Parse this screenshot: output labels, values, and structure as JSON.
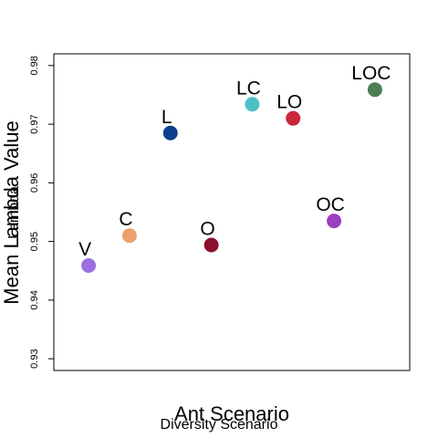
{
  "chart_data": {
    "type": "scatter",
    "title": "",
    "xlabel": "Ant Scenario",
    "xlabel_overlay": "Diversity Scenario",
    "ylabel": "Mean Lambda Value",
    "ylabel_overlay": "Lambda",
    "ylim": [
      0.928,
      0.982
    ],
    "xlim": [
      0.15,
      8.85
    ],
    "yticks": [
      "0.93",
      "0.94",
      "0.95",
      "0.96",
      "0.97",
      "0.98"
    ],
    "ytick_values": [
      0.93,
      0.94,
      0.95,
      0.96,
      0.97,
      0.98
    ],
    "grid": false,
    "legend": "none",
    "points": [
      {
        "label": "V",
        "x": 1,
        "y": 0.9459,
        "color": "#9b6fe0"
      },
      {
        "label": "C",
        "x": 2,
        "y": 0.951,
        "color": "#eba16e"
      },
      {
        "label": "L",
        "x": 3,
        "y": 0.9685,
        "color": "#0c3f8c"
      },
      {
        "label": "O",
        "x": 4,
        "y": 0.9494,
        "color": "#8c0f2e"
      },
      {
        "label": "LC",
        "x": 5,
        "y": 0.9734,
        "color": "#4dbfc7"
      },
      {
        "label": "LO",
        "x": 6,
        "y": 0.971,
        "color": "#cc2639"
      },
      {
        "label": "OC",
        "x": 7,
        "y": 0.9535,
        "color": "#9b3fbe"
      },
      {
        "label": "LOC",
        "x": 8,
        "y": 0.9759,
        "color": "#4c7f53"
      }
    ]
  }
}
